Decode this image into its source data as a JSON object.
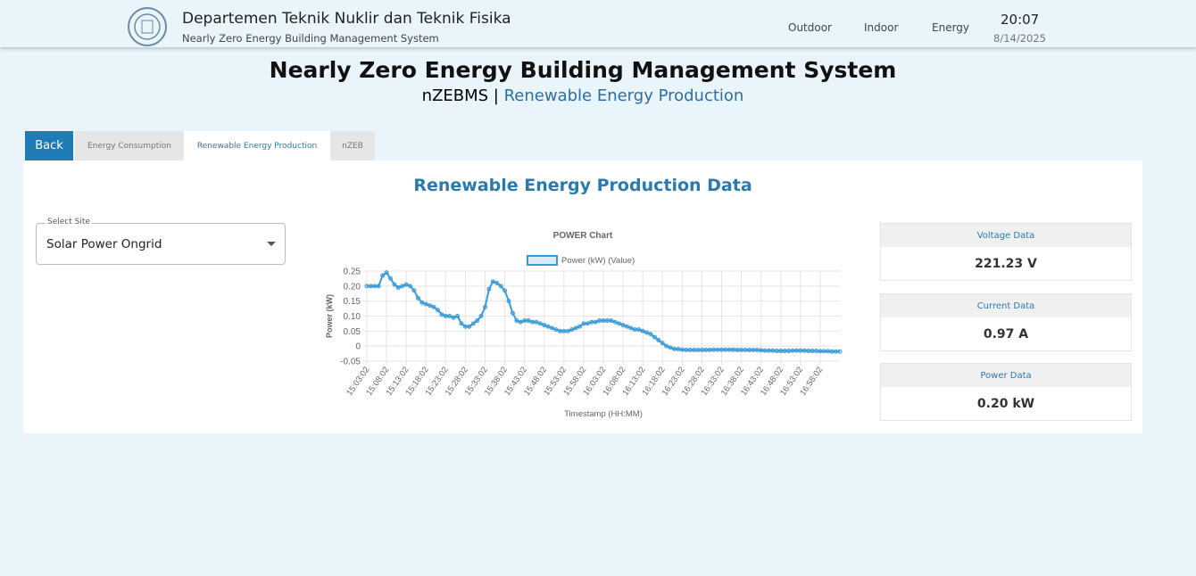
{
  "header": {
    "title": "Departemen Teknik Nuklir dan Teknik Fisika",
    "subtitle": "Nearly Zero Energy Building Management System",
    "nav": [
      "Outdoor",
      "Indoor",
      "Energy"
    ],
    "time": "20:07",
    "date": "8/14/2025"
  },
  "page": {
    "title": "Nearly Zero Energy Building Management System",
    "prefix": "nZEBMS |",
    "section": "Renewable Energy Production"
  },
  "tabs": {
    "back": "Back",
    "items": [
      "Energy Consumption",
      "Renewable Energy Production",
      "nZEB"
    ]
  },
  "panel": {
    "heading": "Renewable Energy Production Data",
    "select_label": "Select Site",
    "select_value": "Solar Power Ongrid",
    "cards": [
      {
        "title": "Voltage Data",
        "value": "221.23 V"
      },
      {
        "title": "Current Data",
        "value": "0.97 A"
      },
      {
        "title": "Power Data",
        "value": "0.20 kW"
      }
    ]
  },
  "chart_data": {
    "type": "line",
    "title": "POWER Chart",
    "x_label": "Timestamp (HH:MM)",
    "y_label": "Power (kW)",
    "grid": true,
    "legend": "top",
    "categories": [
      "15:03:02",
      null,
      null,
      null,
      null,
      "15:08:02",
      null,
      null,
      null,
      null,
      "15:13:02",
      null,
      null,
      null,
      null,
      "15:18:02",
      null,
      null,
      null,
      null,
      "15:23:02",
      null,
      null,
      null,
      null,
      "15:28:02",
      null,
      null,
      null,
      null,
      "15:33:02",
      null,
      null,
      null,
      null,
      "15:38:02",
      null,
      null,
      null,
      null,
      "15:43:02",
      null,
      null,
      null,
      null,
      "15:48:02",
      null,
      null,
      null,
      null,
      "15:53:02",
      null,
      null,
      null,
      null,
      "15:58:02",
      null,
      null,
      null,
      null,
      "16:03:02",
      null,
      null,
      null,
      null,
      "16:08:02",
      null,
      null,
      null,
      null,
      "16:13:02",
      null,
      null,
      null,
      null,
      "16:18:02",
      null,
      null,
      null,
      null,
      "16:23:02",
      null,
      null,
      null,
      null,
      "16:28:02",
      null,
      null,
      null,
      null,
      "16:33:02",
      null,
      null,
      null,
      null,
      "16:38:02",
      null,
      null,
      null,
      null,
      "16:43:02",
      null,
      null,
      null,
      null,
      "16:48:02",
      null,
      null,
      null,
      null,
      "16:53:02",
      null,
      null,
      null,
      null,
      "16:58:02",
      null,
      null,
      null,
      null,
      null
    ],
    "series": [
      {
        "name": "Power (kW) (Value)",
        "color": "#3a9ad9",
        "values": [
          0.2,
          0.2,
          0.2,
          0.2,
          0.235,
          0.245,
          0.225,
          0.205,
          0.195,
          0.2,
          0.205,
          0.2,
          0.185,
          0.16,
          0.145,
          0.14,
          0.135,
          0.13,
          0.12,
          0.105,
          0.1,
          0.1,
          0.095,
          0.1,
          0.075,
          0.065,
          0.065,
          0.075,
          0.085,
          0.1,
          0.13,
          0.19,
          0.215,
          0.21,
          0.2,
          0.185,
          0.15,
          0.11,
          0.085,
          0.08,
          0.085,
          0.085,
          0.08,
          0.08,
          0.075,
          0.07,
          0.065,
          0.06,
          0.055,
          0.05,
          0.05,
          0.05,
          0.055,
          0.06,
          0.065,
          0.075,
          0.075,
          0.08,
          0.08,
          0.085,
          0.085,
          0.085,
          0.085,
          0.08,
          0.075,
          0.07,
          0.065,
          0.06,
          0.055,
          0.055,
          0.05,
          0.045,
          0.04,
          0.03,
          0.02,
          0.01,
          0,
          -0.005,
          -0.01,
          -0.01,
          -0.012,
          -0.013,
          -0.013,
          -0.013,
          -0.013,
          -0.013,
          -0.013,
          -0.013,
          -0.012,
          -0.012,
          -0.012,
          -0.012,
          -0.012,
          -0.012,
          -0.013,
          -0.013,
          -0.013,
          -0.013,
          -0.013,
          -0.013,
          -0.014,
          -0.015,
          -0.015,
          -0.015,
          -0.016,
          -0.016,
          -0.016,
          -0.016,
          -0.015,
          -0.015,
          -0.015,
          -0.015,
          -0.016,
          -0.016,
          -0.016,
          -0.017,
          -0.017,
          -0.017,
          -0.018,
          -0.018,
          -0.018
        ]
      }
    ],
    "ylim": [
      -0.05,
      0.25
    ],
    "yticks": [
      0.25,
      {
        "value": 0.2,
        "label": "0.20"
      },
      0.15,
      {
        "value": 0.1,
        "label": "0.10"
      },
      0.05,
      0,
      -0.05
    ]
  }
}
